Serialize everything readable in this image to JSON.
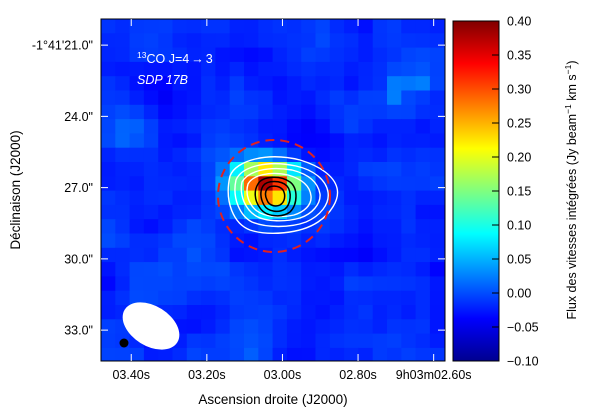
{
  "chart_data": {
    "type": "heatmap",
    "title": "",
    "xlabel": "Ascension droite (J2000)",
    "ylabel": "Déclinaison (J2000)",
    "x_ticks": [
      "03.40s",
      "03.20s",
      "03.00s",
      "02.80s",
      "9h03m02.60s"
    ],
    "x_tick_seconds": [
      3.4,
      3.2,
      3.0,
      2.8,
      2.6
    ],
    "x_range_seconds": [
      3.48,
      2.57
    ],
    "y_ticks": [
      "-1°41'21.0\"",
      "24.0\"",
      "27.0\"",
      "30.0\"",
      "33.0\""
    ],
    "y_tick_arcsec": [
      21.0,
      24.0,
      27.0,
      30.0,
      33.0
    ],
    "y_range_arcsec": [
      19.9,
      34.3
    ],
    "colorbar": {
      "label": "Flux des vitesses intégrées (Jy beam⁻¹ km s⁻¹)",
      "range": [
        -0.1,
        0.4
      ],
      "ticks": [
        "0.40",
        "0.35",
        "0.30",
        "0.25",
        "0.20",
        "0.15",
        "0.10",
        "0.05",
        "0.00",
        "−0.05",
        "−0.10"
      ],
      "colormap": "jet"
    },
    "annotations": {
      "line_species": "¹³CO J=4→3",
      "source": "SDP 17B"
    },
    "peak": {
      "ra_seconds": 3.04,
      "dec_arcsec": 26.9,
      "value": 0.38
    },
    "contours_white": "low levels",
    "contours_black": "high levels",
    "aperture_circle": {
      "color": "#e02020",
      "style": "dashed"
    },
    "beam_ellipse": {
      "color": "#ffffff"
    }
  }
}
